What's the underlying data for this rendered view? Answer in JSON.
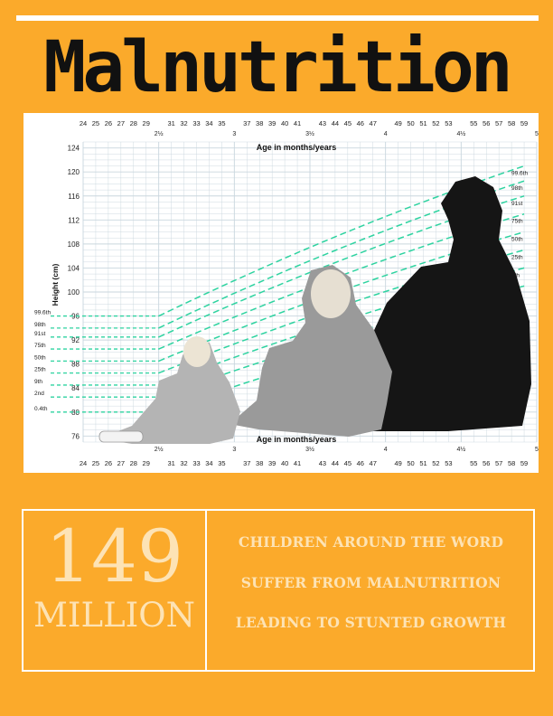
{
  "title": "Malnutrition",
  "chart": {
    "y_axis_label": "Height (cm)",
    "x_axis_label": "Age in months/years",
    "x_axis_label_bottom": "Age in months/years",
    "y_ticks": [
      "124",
      "120",
      "116",
      "112",
      "108",
      "104",
      "100",
      "96",
      "92",
      "88",
      "84",
      "80",
      "76"
    ],
    "month_ticks_top": [
      "24",
      "25",
      "26",
      "27",
      "28",
      "29",
      "31",
      "32",
      "33",
      "34",
      "35",
      "37",
      "38",
      "39",
      "40",
      "41",
      "43",
      "44",
      "45",
      "46",
      "47",
      "49",
      "50",
      "51",
      "52",
      "53",
      "55",
      "56",
      "57",
      "58",
      "59"
    ],
    "month_ticks_bottom": [
      "24",
      "25",
      "26",
      "27",
      "28",
      "29",
      "31",
      "32",
      "33",
      "34",
      "35",
      "37",
      "38",
      "39",
      "40",
      "41",
      "43",
      "44",
      "45",
      "46",
      "47",
      "49",
      "50",
      "51",
      "52",
      "53",
      "55",
      "56",
      "57",
      "58",
      "59"
    ],
    "year_ticks": [
      "2½",
      "3",
      "3½",
      "4",
      "4½",
      "5"
    ],
    "percentile_labels_left": [
      "99.6th",
      "98th",
      "91st",
      "75th",
      "50th",
      "25th",
      "9th",
      "2nd",
      "0.4th"
    ],
    "percentile_labels_right": [
      "99.6th",
      "98th",
      "91st",
      "75th",
      "50th",
      "25th",
      "9th"
    ]
  },
  "chart_data": {
    "type": "line",
    "title": "",
    "xlabel": "Age in months/years",
    "ylabel": "Height (cm)",
    "x": [
      30,
      59
    ],
    "xlim": [
      24,
      60
    ],
    "ylim": [
      75,
      125
    ],
    "series": [
      {
        "name": "99.6th",
        "values": [
          96,
          121
        ]
      },
      {
        "name": "98th",
        "values": [
          94,
          118.5
        ]
      },
      {
        "name": "91st",
        "values": [
          92.5,
          116
        ]
      },
      {
        "name": "75th",
        "values": [
          90.5,
          113
        ]
      },
      {
        "name": "50th",
        "values": [
          88.5,
          110
        ]
      },
      {
        "name": "25th",
        "values": [
          86.5,
          107
        ]
      },
      {
        "name": "9th",
        "values": [
          84.5,
          104
        ]
      },
      {
        "name": "2nd",
        "values": [
          82.5,
          101
        ]
      },
      {
        "name": "0.4th",
        "values": [
          80,
          98
        ]
      }
    ]
  },
  "stats": {
    "number": "149",
    "unit": "MILLION",
    "line1": "CHILDREN AROUND THE WORD",
    "line2": "SUFFER FROM MALNUTRITION",
    "line3": "LEADING TO STUNTED GROWTH"
  },
  "colors": {
    "background": "#fbaa2b",
    "curve": "#2ed3a0",
    "grid": "#c9d6de",
    "stat_text": "#fde3b5"
  }
}
